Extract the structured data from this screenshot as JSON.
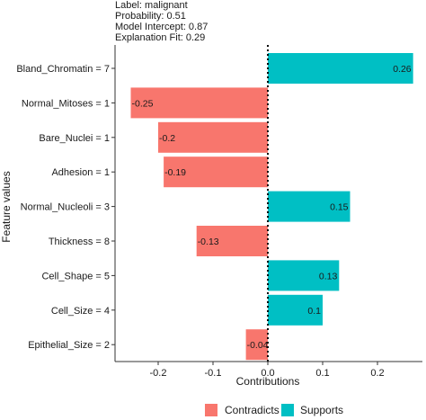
{
  "header": {
    "label_line": "Label: malignant",
    "probability_line": "Probability: 0.51",
    "intercept_line": "Model Intercept: 0.87",
    "fit_line": "Explanation Fit: 0.29"
  },
  "legend": {
    "contradicts_label": "Contradicts",
    "supports_label": "Supports"
  },
  "colors": {
    "contradicts": "#F8766D",
    "supports": "#00BFC4"
  },
  "chart_data": {
    "type": "bar",
    "orientation": "horizontal",
    "xlabel": "Contributions",
    "ylabel": "Feature values",
    "xlim": [
      -0.28,
      0.275
    ],
    "xticks": [
      {
        "value": -0.2,
        "label": "-0.2"
      },
      {
        "value": -0.1,
        "label": "-0.1"
      },
      {
        "value": 0.0,
        "label": "0.0"
      },
      {
        "value": 0.1,
        "label": "0.1"
      },
      {
        "value": 0.2,
        "label": "0.2"
      }
    ],
    "grid": false,
    "legend_position": "bottom",
    "categories": [
      "Bland_Chromatin = 7",
      "Normal_Mitoses = 1",
      "Bare_Nuclei = 1",
      "Adhesion = 1",
      "Normal_Nucleoli = 3",
      "Thickness = 8",
      "Cell_Shape = 5",
      "Cell_Size = 4",
      "Epithelial_Size = 2"
    ],
    "values": [
      0.265,
      -0.25,
      -0.2,
      -0.19,
      0.15,
      -0.13,
      0.13,
      0.1,
      -0.04
    ],
    "value_labels": [
      "0.26",
      "-0.25",
      "-0.2",
      "-0.19",
      "0.15",
      "-0.13",
      "0.13",
      "0.1",
      "-0.04"
    ],
    "series_type": [
      "Supports",
      "Contradicts",
      "Contradicts",
      "Contradicts",
      "Supports",
      "Contradicts",
      "Supports",
      "Supports",
      "Contradicts"
    ]
  }
}
